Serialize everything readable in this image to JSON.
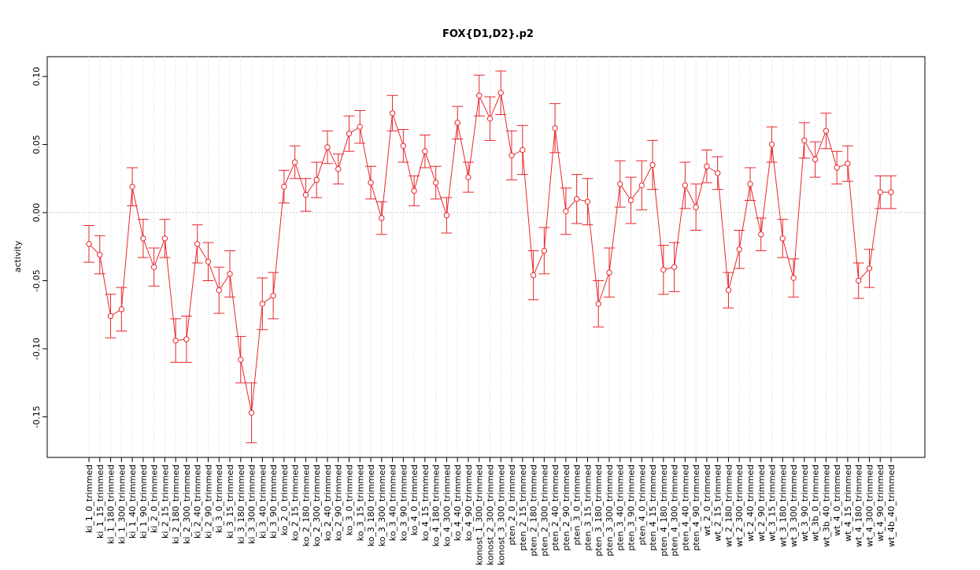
{
  "chart_data": {
    "type": "errorbar_line",
    "title": "FOX{D1,D2}.p2",
    "y_label": "activity",
    "color": "#e8262b",
    "categories": [
      "ki_1_0_trimmed",
      "ki_1_15_trimmed",
      "ki_1_180_trimmed",
      "ki_1_300_trimmed",
      "ki_1_40_trimmed",
      "ki_1_90_trimmed",
      "ki_2_0_trimmed",
      "ki_2_15_trimmed",
      "ki_2_180_trimmed",
      "ki_2_300_trimmed",
      "ki_2_40_trimmed",
      "ki_2_90_trimmed",
      "ki_3_0_trimmed",
      "ki_3_15_trimmed",
      "ki_3_180_trimmed",
      "ki_3_300_trimmed",
      "ki_3_40_trimmed",
      "ki_3_90_trimmed",
      "ko_2_0_trimmed",
      "ko_2_15_trimmed",
      "ko_2_180_trimmed",
      "ko_2_300_trimmed",
      "ko_2_40_trimmed",
      "ko_2_90_trimmed",
      "ko_3_0_trimmed",
      "ko_3_15_trimmed",
      "ko_3_180_trimmed",
      "ko_3_300_trimmed",
      "ko_3_40_trimmed",
      "ko_3_90_trimmed",
      "ko_4_0_trimmed",
      "ko_4_15_trimmed",
      "ko_4_180_trimmed",
      "ko_4_300_trimmed",
      "ko_4_40_trimmed",
      "ko_4_90_trimmed",
      "konost_1_300_trimmed",
      "konost_2_300_trimmed",
      "konost_3_300_trimmed",
      "pten_2_0_trimmed",
      "pten_2_15_trimmed",
      "pten_2_180_trimmed",
      "pten_2_300_trimmed",
      "pten_2_40_trimmed",
      "pten_2_90_trimmed",
      "pten_3_0_trimmed",
      "pten_3_15_trimmed",
      "pten_3_180_trimmed",
      "pten_3_300_trimmed",
      "pten_3_40_trimmed",
      "pten_3_90_trimmed",
      "pten_4_0_trimmed",
      "pten_4_15_trimmed",
      "pten_4_180_trimmed",
      "pten_4_300_trimmed",
      "pten_4_40_trimmed",
      "pten_4_90_trimmed",
      "wt_2_0_trimmed",
      "wt_2_15_trimmed",
      "wt_2_180_trimmed",
      "wt_2_300_trimmed",
      "wt_2_40_trimmed",
      "wt_2_90_trimmed",
      "wt_3_15_trimmed",
      "wt_3_180_trimmed",
      "wt_3_300_trimmed",
      "wt_3_90_trimmed",
      "wt_3b_0_trimmed",
      "wt_3b_40_trimmed",
      "wt_4_0_trimmed",
      "wt_4_15_trimmed",
      "wt_4_180_trimmed",
      "wt_4_300_trimmed",
      "wt_4_90_trimmed",
      "wt_4b_40_trimmed"
    ],
    "values": [
      -0.023,
      -0.031,
      -0.076,
      -0.071,
      0.019,
      -0.019,
      -0.04,
      -0.019,
      -0.094,
      -0.093,
      -0.023,
      -0.036,
      -0.057,
      -0.045,
      -0.108,
      -0.147,
      -0.067,
      -0.061,
      0.019,
      0.037,
      0.013,
      0.024,
      0.048,
      0.032,
      0.058,
      0.063,
      0.022,
      -0.004,
      0.073,
      0.049,
      0.016,
      0.045,
      0.022,
      -0.002,
      0.066,
      0.026,
      0.086,
      0.069,
      0.088,
      0.042,
      0.046,
      -0.046,
      -0.028,
      0.062,
      0.001,
      0.01,
      0.008,
      -0.067,
      -0.044,
      0.021,
      0.009,
      0.02,
      0.035,
      -0.042,
      -0.04,
      0.02,
      0.004,
      0.034,
      0.029,
      -0.057,
      -0.027,
      0.021,
      -0.016,
      0.05,
      -0.019,
      -0.048,
      0.053,
      0.039,
      0.06,
      0.033,
      0.036,
      -0.05,
      -0.041,
      0.015,
      0.015
    ],
    "errors": [
      0.0135,
      0.014,
      0.016,
      0.016,
      0.014,
      0.014,
      0.014,
      0.014,
      0.016,
      0.017,
      0.014,
      0.014,
      0.017,
      0.017,
      0.017,
      0.022,
      0.019,
      0.017,
      0.012,
      0.012,
      0.012,
      0.013,
      0.012,
      0.011,
      0.013,
      0.012,
      0.012,
      0.012,
      0.013,
      0.012,
      0.011,
      0.012,
      0.012,
      0.013,
      0.012,
      0.011,
      0.015,
      0.016,
      0.016,
      0.018,
      0.018,
      0.018,
      0.017,
      0.018,
      0.017,
      0.018,
      0.017,
      0.017,
      0.018,
      0.017,
      0.017,
      0.018,
      0.018,
      0.018,
      0.018,
      0.017,
      0.017,
      0.012,
      0.012,
      0.013,
      0.014,
      0.012,
      0.012,
      0.013,
      0.014,
      0.014,
      0.013,
      0.013,
      0.013,
      0.012,
      0.013,
      0.013,
      0.014,
      0.012,
      0.012
    ],
    "ylim": [
      -0.1798,
      0.1145
    ],
    "yticks": [
      {
        "value": -0.15,
        "label": "-0.15"
      },
      {
        "value": -0.1,
        "label": "-0.10"
      },
      {
        "value": -0.05,
        "label": "-0.05"
      },
      {
        "value": 0,
        "label": "0.00"
      },
      {
        "value": 0.05,
        "label": "0.05"
      },
      {
        "value": 0.1,
        "label": "0.10"
      }
    ],
    "reference_line": 0,
    "grid": true
  }
}
